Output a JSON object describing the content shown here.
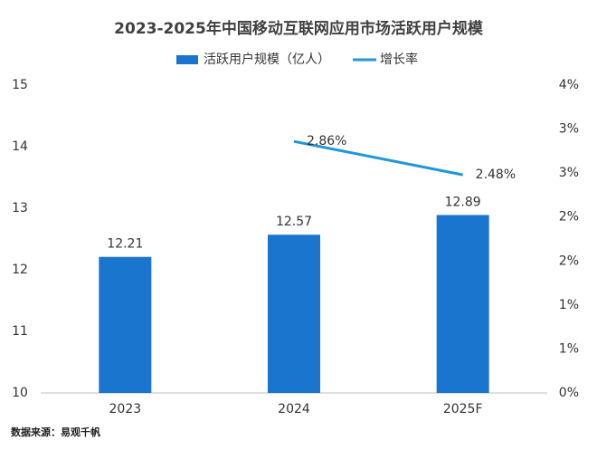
{
  "chart_data": {
    "type": "bar",
    "title": "2023-2025年中国移动互联网应用市场活跃用户规模",
    "categories": [
      "2023",
      "2024",
      "2025F"
    ],
    "series": [
      {
        "name": "活跃用户规模（亿人）",
        "type": "bar",
        "color": "#1a75cf",
        "values": [
          12.21,
          12.57,
          12.89
        ]
      },
      {
        "name": "增长率",
        "type": "line",
        "axis": "y2",
        "color": "#1f98d8",
        "values": [
          null,
          2.86,
          2.48
        ],
        "value_labels": [
          null,
          "2.86%",
          "2.48%"
        ]
      }
    ],
    "ylim": [
      10,
      15
    ],
    "yticks": [
      10,
      11,
      12,
      13,
      14,
      15
    ],
    "y2lim": [
      0,
      3.5
    ],
    "y2ticks": [
      {
        "value": 0,
        "label": "0%"
      },
      {
        "value": 0.5,
        "label": "1%"
      },
      {
        "value": 1,
        "label": "1%"
      },
      {
        "value": 1.5,
        "label": "2%"
      },
      {
        "value": 2,
        "label": "2%"
      },
      {
        "value": 2.5,
        "label": "3%"
      },
      {
        "value": 3,
        "label": "3%"
      },
      {
        "value": 3.5,
        "label": "4%"
      }
    ],
    "grid": false,
    "legend": "top",
    "source": "数据来源：易观千帆"
  }
}
